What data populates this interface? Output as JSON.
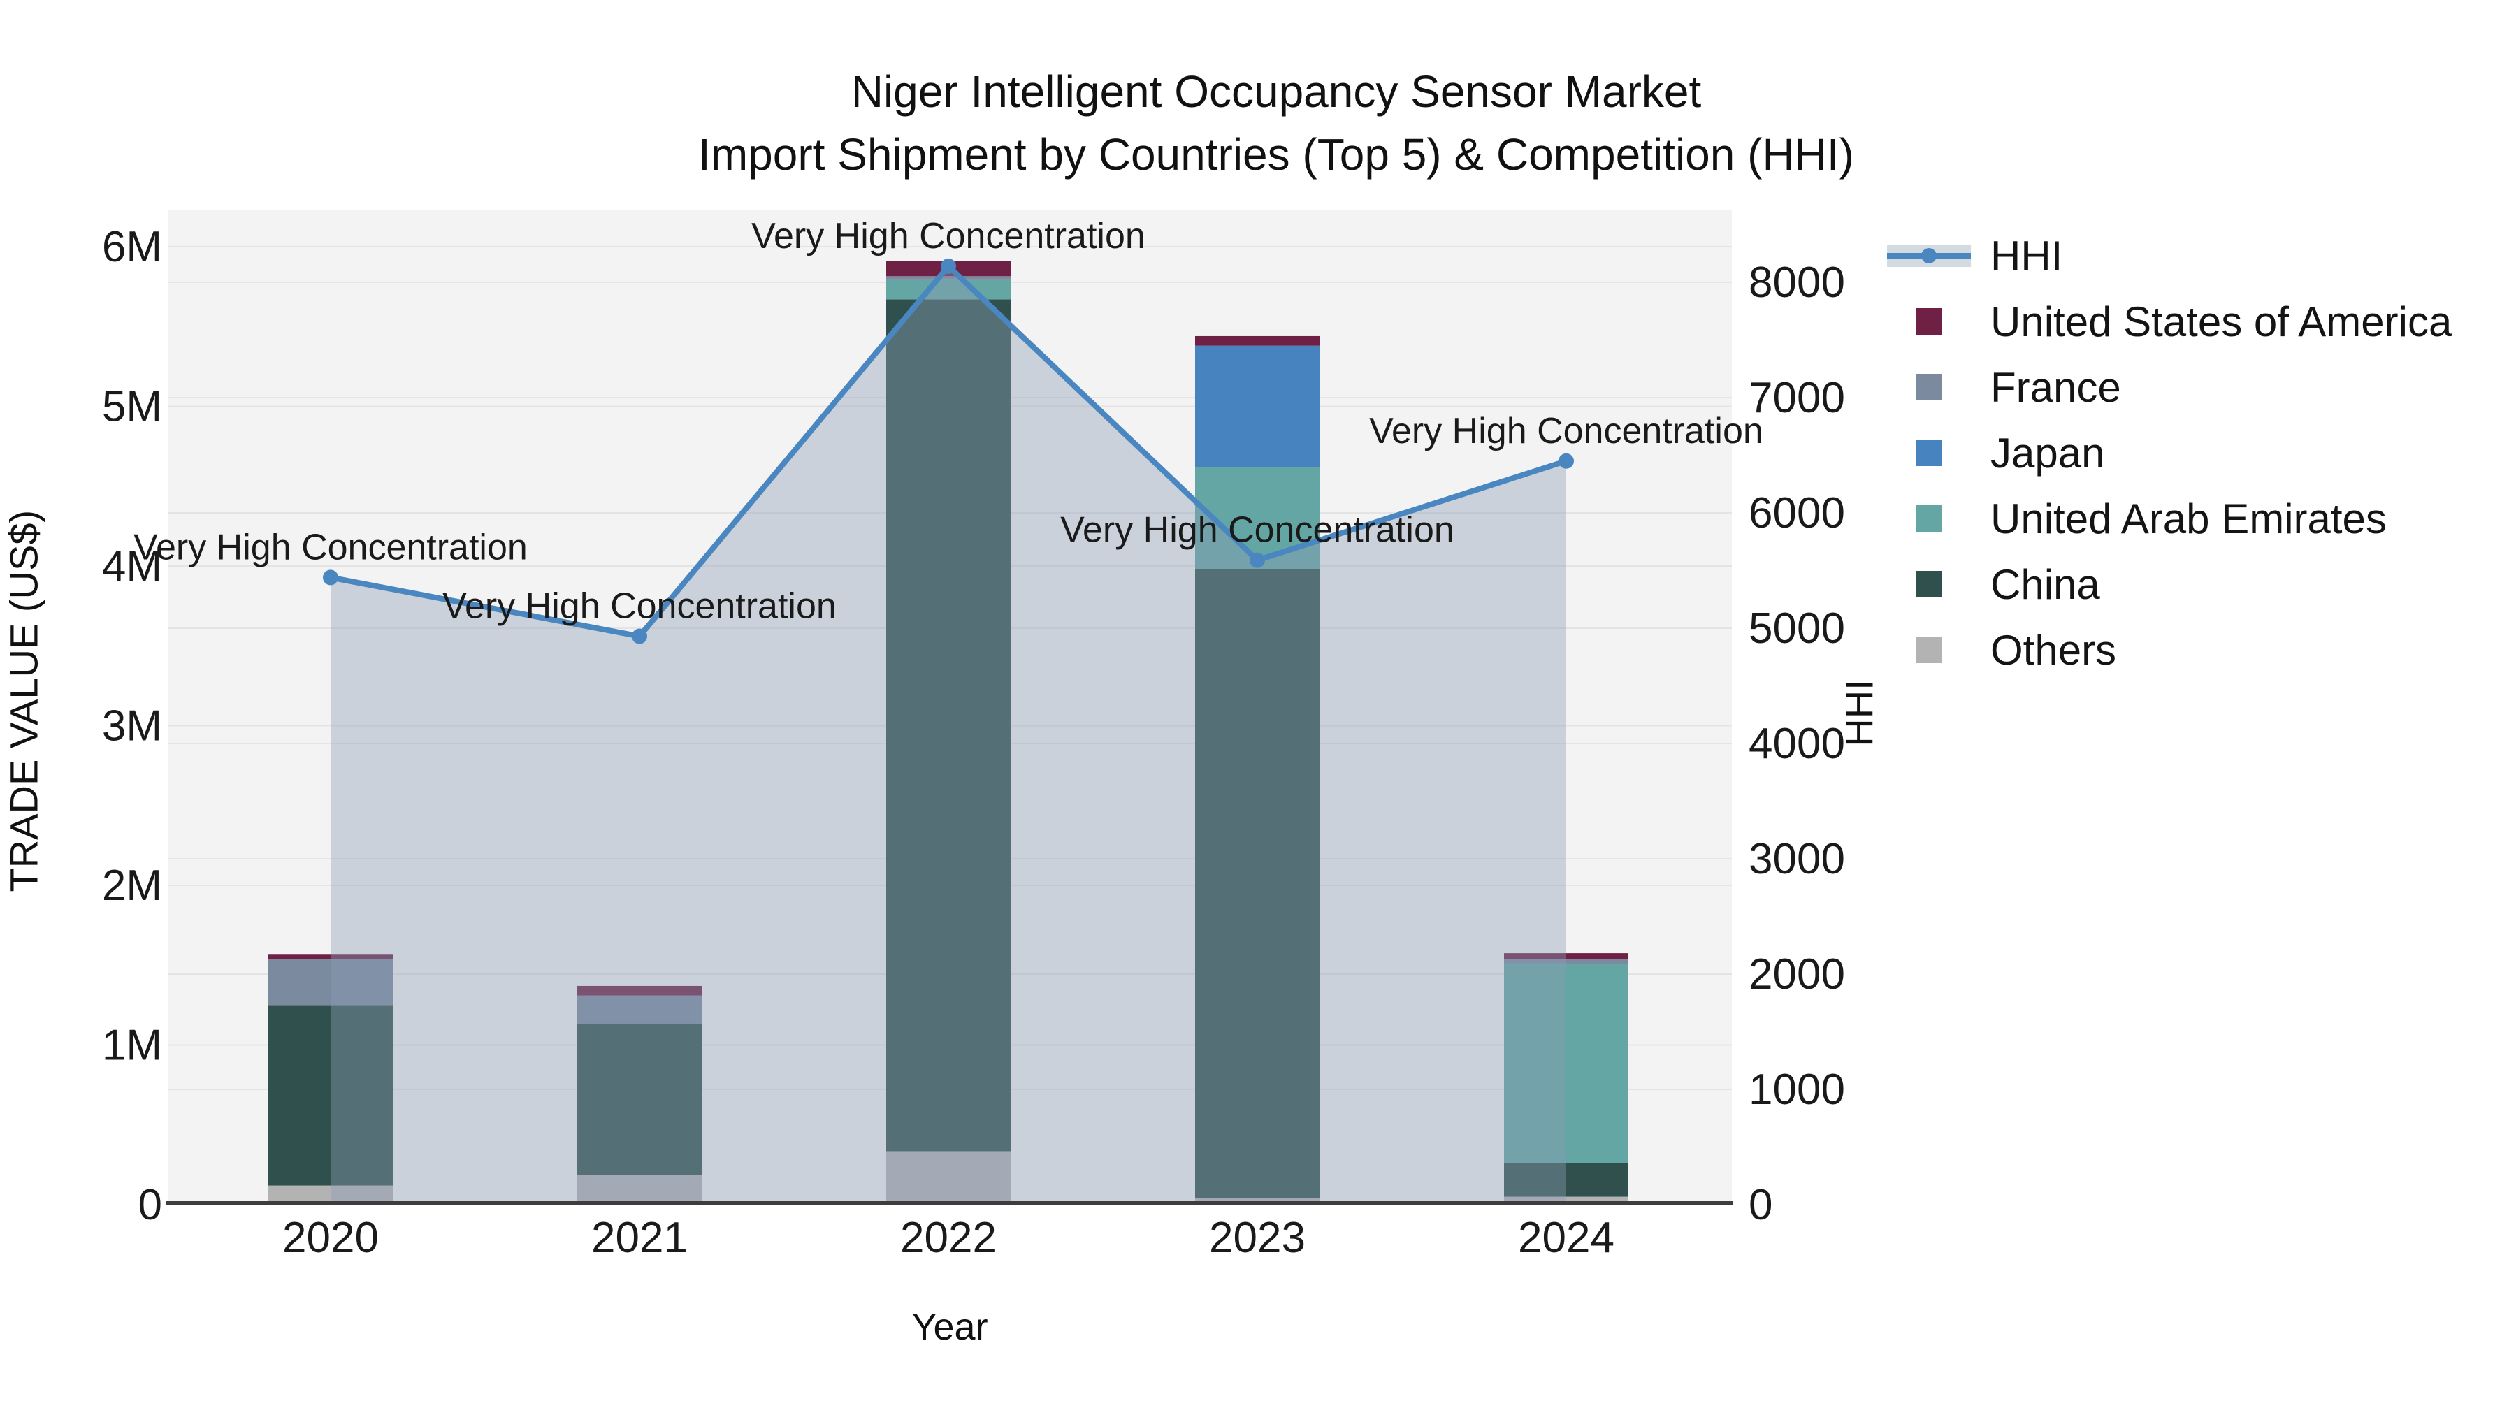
{
  "title": {
    "line1": "Niger Intelligent Occupancy Sensor Market",
    "line2": "Import Shipment by Countries (Top 5) & Competition (HHI)"
  },
  "axes": {
    "x_title": "Year",
    "y_left_title": "TRADE VALUE (US$)",
    "y_right_title": "HHI"
  },
  "legend": {
    "items": [
      {
        "label": "HHI",
        "type": "line",
        "color_key": "hhi_line"
      },
      {
        "label": "United States of America",
        "type": "square",
        "color_key": "usa"
      },
      {
        "label": "France",
        "type": "square",
        "color_key": "france"
      },
      {
        "label": "Japan",
        "type": "square",
        "color_key": "japan"
      },
      {
        "label": "United Arab Emirates",
        "type": "square",
        "color_key": "uae"
      },
      {
        "label": "China",
        "type": "square",
        "color_key": "china"
      },
      {
        "label": "Others",
        "type": "square",
        "color_key": "others"
      }
    ]
  },
  "colors": {
    "hhi_line": "#4a87c1",
    "usa": "#6e2045",
    "france": "#7b8a9e",
    "japan": "#4683bf",
    "uae": "#63a6a4",
    "china": "#2f504c",
    "others": "#b3b3b4",
    "area_fill": "rgba(141,158,183,0.40)",
    "hhi_legend_band": "#d4dae2",
    "plot_bg": "#f3f3f3",
    "grid": "#e4e4e4",
    "axis_line": "#3d3d3d",
    "text": "#1a1a1a"
  },
  "chart_data": {
    "type": "combo: stacked bar (left axis) + line with area fill (right axis)",
    "categories": [
      "2020",
      "2021",
      "2022",
      "2023",
      "2024"
    ],
    "xlabel": "Year",
    "ylabel_left": "TRADE VALUE (US$)",
    "ylabel_right": "HHI",
    "ylim_left": [
      0,
      6300000
    ],
    "ylim_right": [
      0,
      8600
    ],
    "grid": "on",
    "legend_position": "right",
    "bar_series_stack_order_bottom_to_top": [
      {
        "name": "Others",
        "color_key": "others",
        "values": [
          120000,
          185000,
          335000,
          40000,
          50000
        ]
      },
      {
        "name": "China",
        "color_key": "china",
        "values": [
          1130000,
          950000,
          5335000,
          3940000,
          210000
        ]
      },
      {
        "name": "United Arab Emirates",
        "color_key": "uae",
        "values": [
          0,
          0,
          125000,
          640000,
          1250000
        ]
      },
      {
        "name": "Japan",
        "color_key": "japan",
        "values": [
          0,
          0,
          0,
          760000,
          0
        ]
      },
      {
        "name": "France",
        "color_key": "france",
        "values": [
          290000,
          175000,
          20000,
          0,
          30000
        ]
      },
      {
        "name": "United States of America",
        "color_key": "usa",
        "values": [
          30000,
          60000,
          95000,
          60000,
          35000
        ]
      }
    ],
    "bar_totals_us$": [
      1570000,
      1370000,
      5910000,
      5440000,
      1575000
    ],
    "line_series": {
      "name": "HHI",
      "axis": "right",
      "fill": "to-zero",
      "values": [
        5440,
        4930,
        8140,
        5590,
        6450
      ]
    },
    "annotation_labels": [
      "Very High Concentration",
      "Very High Concentration",
      "Very High Concentration",
      "Very High Concentration",
      "Very High Concentration"
    ],
    "left_axis_ticks": {
      "values": [
        0,
        1000000,
        2000000,
        3000000,
        4000000,
        5000000,
        6000000
      ],
      "labels": [
        "0",
        "1M",
        "2M",
        "3M",
        "4M",
        "5M",
        "6M"
      ]
    },
    "right_axis_ticks": {
      "values": [
        0,
        1000,
        2000,
        3000,
        4000,
        5000,
        6000,
        7000,
        8000
      ],
      "labels": [
        "0",
        "1000",
        "2000",
        "3000",
        "4000",
        "5000",
        "6000",
        "7000",
        "8000"
      ]
    }
  }
}
